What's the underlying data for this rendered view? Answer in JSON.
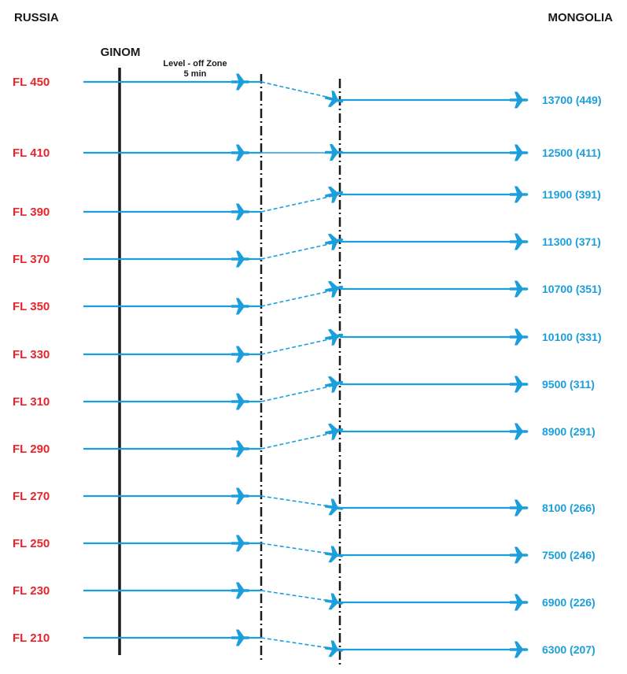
{
  "headers": {
    "left": "RUSSIA",
    "right": "MONGOLIA"
  },
  "fix_name": "GINOM",
  "zone_label": {
    "line1": "Level - off Zone",
    "line2": "5 min"
  },
  "colors": {
    "russia_text": "#e8242c",
    "mongolia_text": "#1b9fdc",
    "track": "#1b9fdc",
    "boundary": "#1a1a1a"
  },
  "icon": "airplane-icon",
  "levels": [
    {
      "russia": "FL 450",
      "mongolia": "13700 (449)"
    },
    {
      "russia": "FL 410",
      "mongolia": "12500 (411)"
    },
    {
      "russia": "FL 390",
      "mongolia": "11900 (391)"
    },
    {
      "russia": "FL 370",
      "mongolia": "11300 (371)"
    },
    {
      "russia": "FL 350",
      "mongolia": "10700 (351)"
    },
    {
      "russia": "FL 330",
      "mongolia": "10100 (331)"
    },
    {
      "russia": "FL 310",
      "mongolia": "9500 (311)"
    },
    {
      "russia": "FL 290",
      "mongolia": "8900 (291)"
    },
    {
      "russia": "FL 270",
      "mongolia": "8100 (266)"
    },
    {
      "russia": "FL 250",
      "mongolia": "7500 (246)"
    },
    {
      "russia": "FL 230",
      "mongolia": "6900 (226)"
    },
    {
      "russia": "FL 210",
      "mongolia": "6300 (207)"
    }
  ]
}
